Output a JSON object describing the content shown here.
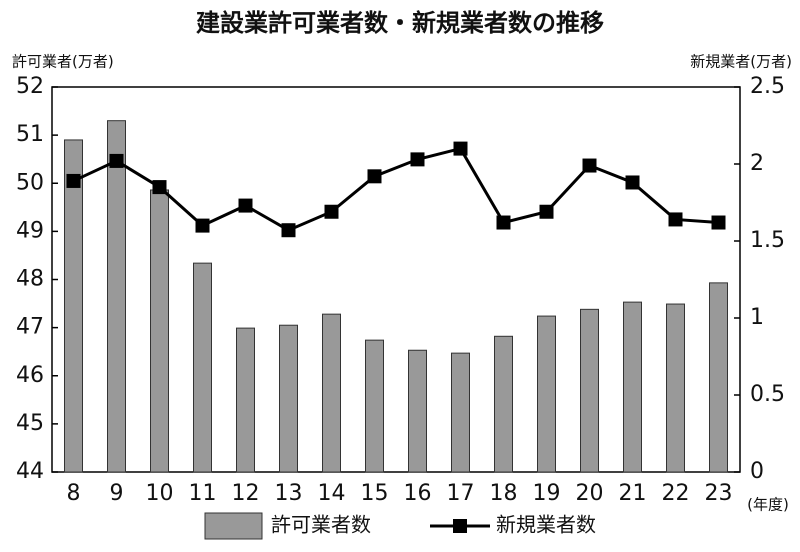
{
  "chart_data": {
    "type": "bar-line",
    "title": "建設業許可業者数・新規業者数の推移",
    "y_label": "許可業者(万者)",
    "y2_label": "新規業者(万者)",
    "x_label": "(年度)",
    "categories": [
      "8",
      "9",
      "10",
      "11",
      "12",
      "13",
      "14",
      "15",
      "16",
      "17",
      "18",
      "19",
      "20",
      "21",
      "22",
      "23"
    ],
    "series": [
      {
        "name": "許可業者数",
        "type": "bar",
        "color": "#999999",
        "values": [
          50.9,
          51.3,
          49.86,
          48.34,
          46.99,
          47.05,
          47.28,
          46.74,
          46.53,
          46.47,
          46.82,
          47.24,
          47.38,
          47.53,
          47.49,
          47.93
        ]
      },
      {
        "name": "新規業者数",
        "type": "line",
        "color": "#000000",
        "axis": "y2",
        "values": [
          1.89,
          2.02,
          1.85,
          1.6,
          1.73,
          1.57,
          1.69,
          1.92,
          2.03,
          2.1,
          1.62,
          1.69,
          1.99,
          1.88,
          1.64,
          1.62
        ]
      }
    ],
    "ylim": [
      44,
      52
    ],
    "yticks": [
      44,
      45,
      46,
      47,
      48,
      49,
      50,
      51,
      52
    ],
    "y2lim": [
      0,
      2.5
    ],
    "y2ticks": [
      0,
      0.5,
      1,
      1.5,
      2,
      2.5
    ]
  }
}
